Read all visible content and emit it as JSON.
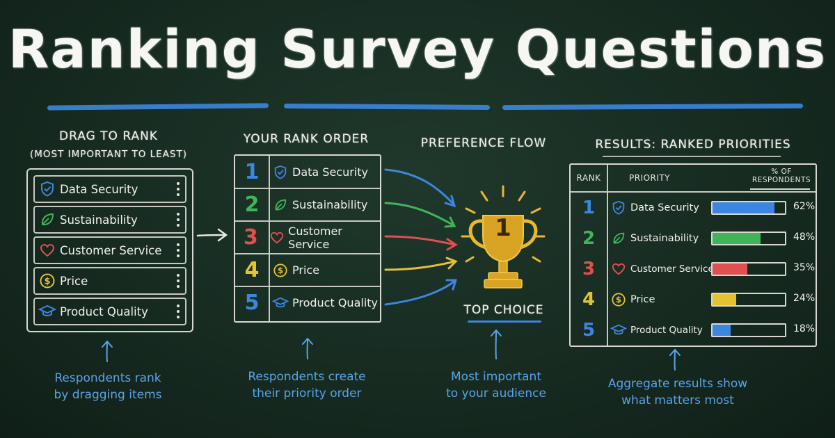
{
  "title": "Ranking Survey Questions",
  "colors": {
    "blue": "#3d86e0",
    "green": "#3fb55a",
    "red": "#e05050",
    "yellow": "#e3c332",
    "gold": "#e8b830",
    "caption": "#5aa3e8"
  },
  "drag_section": {
    "heading": "DRAG TO RANK",
    "subheading": "(MOST IMPORTANT TO LEAST)",
    "items": [
      {
        "label": "Data Security",
        "icon": "shield-icon"
      },
      {
        "label": "Sustainability",
        "icon": "leaf-icon"
      },
      {
        "label": "Customer Service",
        "icon": "heart-icon"
      },
      {
        "label": "Price",
        "icon": "dollar-coin-icon"
      },
      {
        "label": "Product Quality",
        "icon": "graduation-cap-icon"
      }
    ],
    "caption_line1": "Respondents rank",
    "caption_line2": "by dragging items"
  },
  "order_section": {
    "heading": "YOUR RANK ORDER",
    "rows": [
      {
        "rank": "1",
        "label": "Data Security",
        "icon": "shield-icon",
        "color": "#3d86e0"
      },
      {
        "rank": "2",
        "label": "Sustainability",
        "icon": "leaf-icon",
        "color": "#3fb55a"
      },
      {
        "rank": "3",
        "label": "Customer Service",
        "icon": "heart-icon",
        "color": "#e05050"
      },
      {
        "rank": "4",
        "label": "Price",
        "icon": "dollar-coin-icon",
        "color": "#e3c332"
      },
      {
        "rank": "5",
        "label": "Product Quality",
        "icon": "graduation-cap-icon",
        "color": "#3d86e0"
      }
    ],
    "caption_line1": "Respondents create",
    "caption_line2": "their priority order"
  },
  "flow_section": {
    "heading": "PREFERENCE FLOW",
    "trophy_number": "1",
    "top_choice": "TOP CHOICE",
    "caption_line1": "Most important",
    "caption_line2": "to your audience"
  },
  "results_section": {
    "heading": "RESULTS: RANKED PRIORITIES",
    "col_rank": "RANK",
    "col_priority": "PRIORITY",
    "col_pct_line1": "% OF",
    "col_pct_line2": "RESPONDENTS",
    "rows": [
      {
        "rank": "1",
        "label": "Data Security",
        "icon": "shield-icon",
        "color": "#3d86e0",
        "value": 62,
        "pct": "62%"
      },
      {
        "rank": "2",
        "label": "Sustainability",
        "icon": "leaf-icon",
        "color": "#3fb55a",
        "value": 48,
        "pct": "48%"
      },
      {
        "rank": "3",
        "label": "Customer Service",
        "icon": "heart-icon",
        "color": "#e05050",
        "value": 35,
        "pct": "35%"
      },
      {
        "rank": "4",
        "label": "Price",
        "icon": "dollar-coin-icon",
        "color": "#e3c332",
        "value": 24,
        "pct": "24%"
      },
      {
        "rank": "5",
        "label": "Product Quality",
        "icon": "graduation-cap-icon",
        "color": "#3d86e0",
        "value": 18,
        "pct": "18%"
      }
    ],
    "caption_line1": "Aggregate results show",
    "caption_line2": "what matters most"
  }
}
